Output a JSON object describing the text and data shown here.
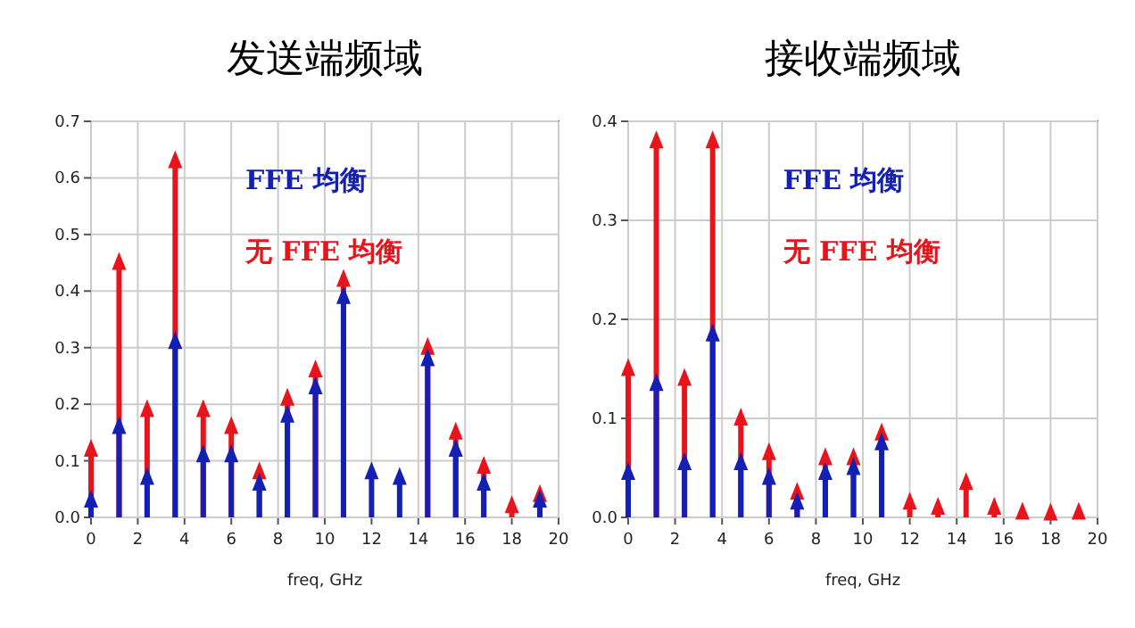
{
  "chart_data": [
    {
      "type": "lollipop",
      "title": "发送端频域",
      "xlabel": "freq, GHz",
      "x": [
        0,
        1.2,
        2.4,
        3.6,
        4.8,
        6.0,
        7.2,
        8.4,
        9.6,
        10.8,
        12.0,
        13.2,
        14.4,
        15.6,
        16.8,
        18.0,
        19.2
      ],
      "series": [
        {
          "name": "无 FFE 均衡",
          "color": "#e8141c",
          "values": [
            0.12,
            0.45,
            0.19,
            0.63,
            0.19,
            0.16,
            0.08,
            0.21,
            0.26,
            0.42,
            null,
            null,
            0.3,
            0.15,
            0.09,
            0.02,
            0.04
          ]
        },
        {
          "name": "FFE 均衡",
          "color": "#1420b4",
          "values": [
            0.03,
            0.16,
            0.07,
            0.31,
            0.11,
            0.11,
            0.06,
            0.18,
            0.23,
            0.39,
            0.08,
            0.07,
            0.28,
            0.12,
            0.06,
            null,
            0.03
          ]
        }
      ],
      "xlim": [
        0,
        20
      ],
      "xticks": [
        0,
        2,
        4,
        6,
        8,
        10,
        12,
        14,
        16,
        18,
        20
      ],
      "ylim": [
        0,
        0.7
      ],
      "yticks": [
        {
          "value": 0,
          "label": "0.0"
        },
        0.1,
        0.2,
        0.3,
        0.4,
        0.5,
        0.6,
        0.7
      ],
      "grid": true,
      "legend": "top",
      "marker": "triangle"
    },
    {
      "type": "lollipop",
      "title": "接收端频域",
      "xlabel": "freq, GHz",
      "x": [
        0,
        1.2,
        2.4,
        3.6,
        4.8,
        6.0,
        7.2,
        8.4,
        9.6,
        10.8,
        12.0,
        13.2,
        14.4,
        15.6,
        16.8,
        18.0,
        19.2
      ],
      "series": [
        {
          "name": "无 FFE 均衡",
          "color": "#e8141c",
          "values": [
            0.15,
            0.38,
            0.14,
            0.38,
            0.1,
            0.065,
            0.025,
            0.06,
            0.06,
            0.085,
            0.015,
            0.01,
            0.035,
            0.01,
            0.005,
            0.004,
            0.005
          ]
        },
        {
          "name": "FFE 均衡",
          "color": "#1420b4",
          "values": [
            0.045,
            0.135,
            0.055,
            0.185,
            0.055,
            0.04,
            0.015,
            0.045,
            0.05,
            0.075,
            null,
            null,
            null,
            null,
            null,
            null,
            null
          ]
        }
      ],
      "xlim": [
        0,
        20
      ],
      "xticks": [
        0,
        2,
        4,
        6,
        8,
        10,
        12,
        14,
        16,
        18,
        20
      ],
      "ylim": [
        0,
        0.4
      ],
      "yticks": [
        {
          "value": 0,
          "label": "0.0"
        },
        0.1,
        0.2,
        0.3,
        0.4
      ],
      "grid": true,
      "legend": "top",
      "marker": "triangle"
    }
  ]
}
